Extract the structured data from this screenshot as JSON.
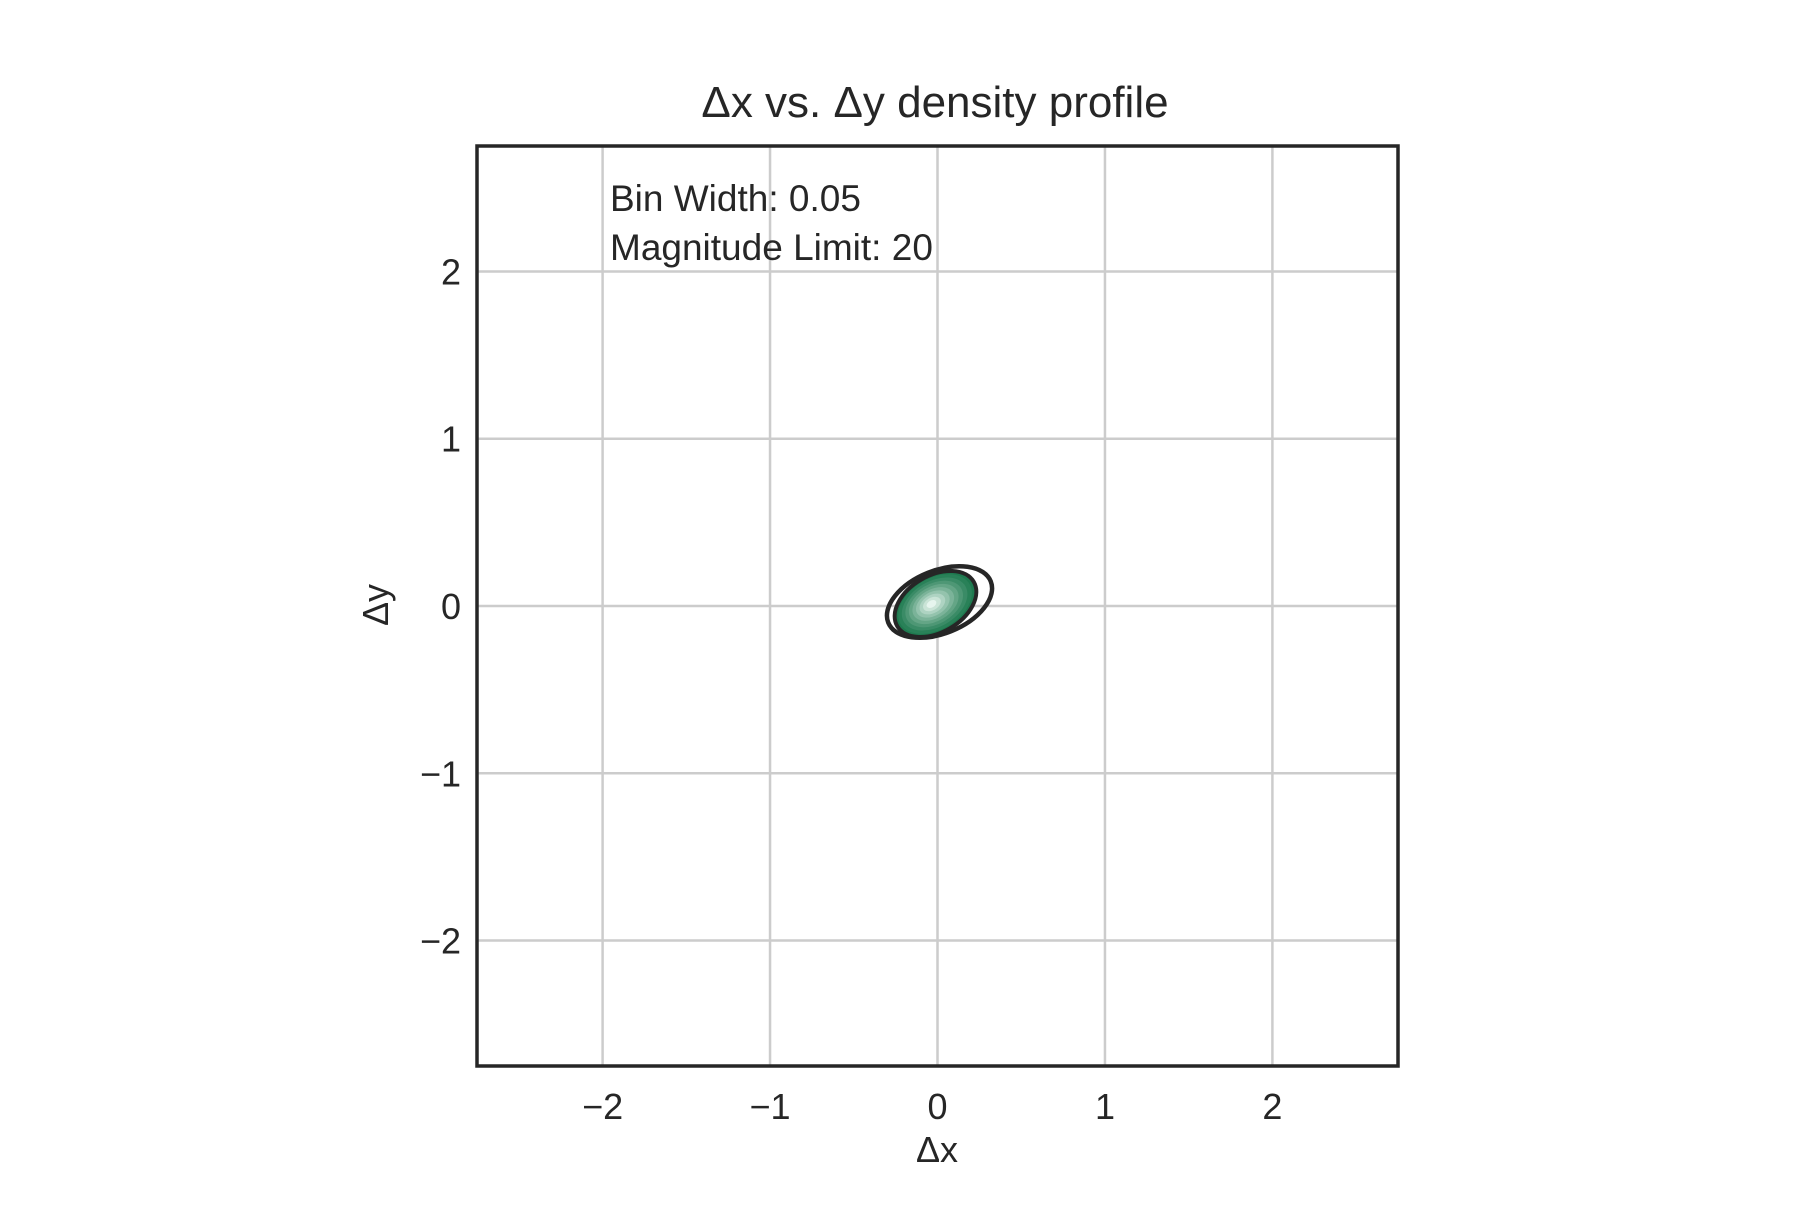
{
  "chart_data": {
    "type": "contour",
    "title": "Δx vs. Δy density profile",
    "xlabel": "Δx",
    "ylabel": "Δy",
    "xlim": [
      -2.75,
      2.75
    ],
    "ylim": [
      -2.75,
      2.75
    ],
    "xticks": [
      -2,
      -1,
      0,
      1,
      2
    ],
    "yticks": [
      -2,
      -1,
      0,
      1,
      2
    ],
    "xtick_labels": [
      "−2",
      "−1",
      "0",
      "1",
      "2"
    ],
    "ytick_labels": [
      "−2",
      "−1",
      "0",
      "1",
      "2"
    ],
    "grid": true,
    "annotations": [
      "Bin Width: 0.05",
      "Magnitude Limit: 20"
    ],
    "density": {
      "center": [
        0.0,
        0.0
      ],
      "correlation": "positive",
      "outer_contour_extent": {
        "x": [
          -0.33,
          0.33
        ],
        "y": [
          -0.23,
          0.24
        ]
      }
    },
    "colors": {
      "outer_contour": "#262626",
      "fill_low": "#1e7a4f",
      "fill_high": "#e6f5ee",
      "grid": "#cccccc",
      "axes": "#262626"
    }
  }
}
